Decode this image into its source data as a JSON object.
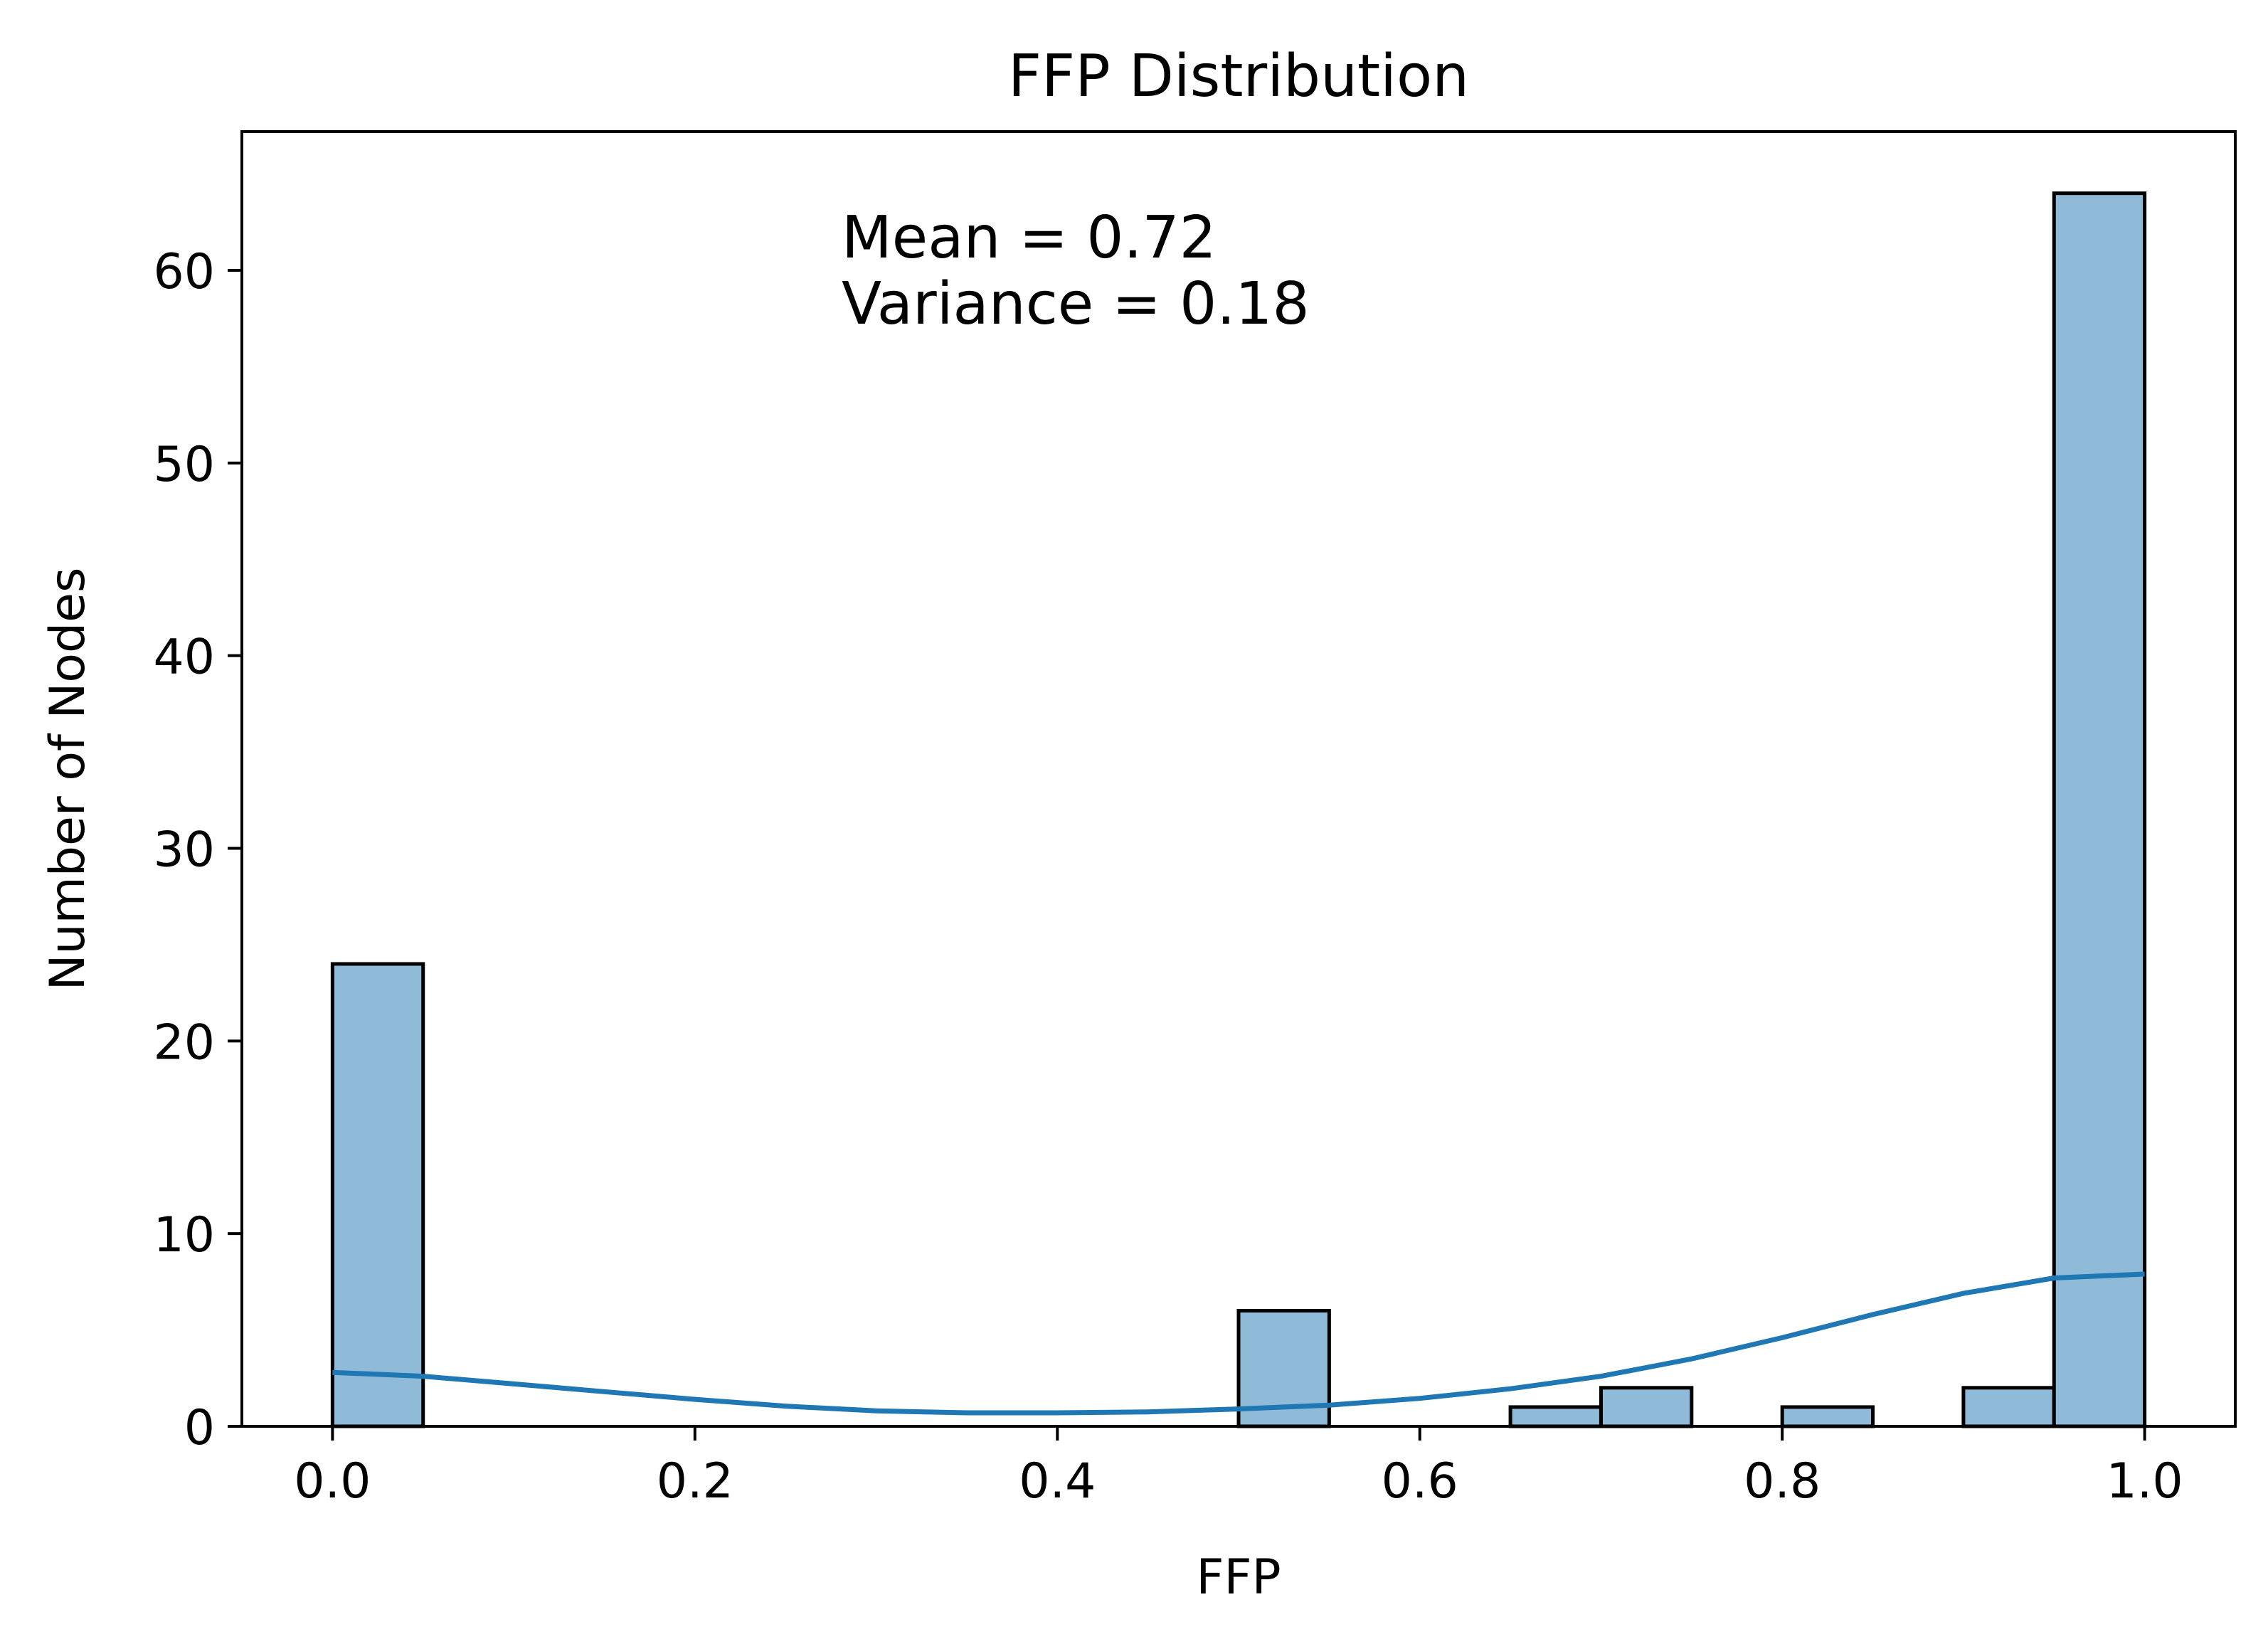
{
  "chart_data": {
    "type": "bar",
    "title": "FFP Distribution",
    "xlabel": "FFP",
    "ylabel": "Number of Nodes",
    "xlim": [
      -0.05,
      1.05
    ],
    "ylim": [
      0,
      67.2
    ],
    "xticks": [
      0.0,
      0.2,
      0.4,
      0.6,
      0.8,
      1.0
    ],
    "xtick_labels": [
      "0.0",
      "0.2",
      "0.4",
      "0.6",
      "0.8",
      "1.0"
    ],
    "yticks": [
      0,
      10,
      20,
      30,
      40,
      50,
      60
    ],
    "ytick_labels": [
      "0",
      "10",
      "20",
      "30",
      "40",
      "50",
      "60"
    ],
    "grid": false,
    "bin_width": 0.05,
    "bins": [
      {
        "x0": 0.0,
        "count": 24
      },
      {
        "x0": 0.05,
        "count": 0
      },
      {
        "x0": 0.1,
        "count": 0
      },
      {
        "x0": 0.15,
        "count": 0
      },
      {
        "x0": 0.2,
        "count": 0
      },
      {
        "x0": 0.25,
        "count": 0
      },
      {
        "x0": 0.3,
        "count": 0
      },
      {
        "x0": 0.35,
        "count": 0
      },
      {
        "x0": 0.4,
        "count": 0
      },
      {
        "x0": 0.45,
        "count": 0
      },
      {
        "x0": 0.5,
        "count": 6
      },
      {
        "x0": 0.55,
        "count": 0
      },
      {
        "x0": 0.6,
        "count": 0
      },
      {
        "x0": 0.65,
        "count": 1
      },
      {
        "x0": 0.7,
        "count": 2
      },
      {
        "x0": 0.75,
        "count": 0
      },
      {
        "x0": 0.8,
        "count": 1
      },
      {
        "x0": 0.85,
        "count": 0
      },
      {
        "x0": 0.9,
        "count": 2
      },
      {
        "x0": 0.95,
        "count": 64
      }
    ],
    "kde": {
      "x": [
        0.0,
        0.05,
        0.1,
        0.15,
        0.2,
        0.25,
        0.3,
        0.35,
        0.4,
        0.45,
        0.5,
        0.55,
        0.6,
        0.65,
        0.7,
        0.75,
        0.8,
        0.85,
        0.9,
        0.95,
        1.0
      ],
      "y": [
        2.8,
        2.6,
        2.2,
        1.8,
        1.4,
        1.05,
        0.8,
        0.7,
        0.7,
        0.75,
        0.9,
        1.1,
        1.45,
        1.95,
        2.6,
        3.5,
        4.6,
        5.8,
        6.9,
        7.7,
        7.9
      ]
    },
    "annotations": [
      "Mean = 0.72",
      "Variance = 0.18"
    ],
    "colors": {
      "bar_fill": "#8fbad8",
      "bar_edge": "#000000",
      "kde_line": "#1f77b4"
    }
  }
}
